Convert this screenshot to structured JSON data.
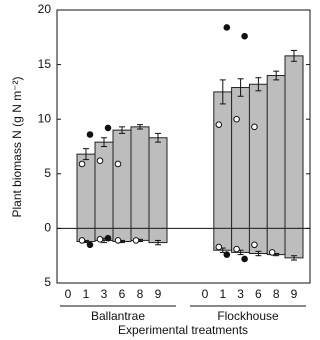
{
  "chart_data": {
    "type": "bar",
    "ylabel": "Plant biomass N (g N m⁻²)",
    "xlabel": "Experimental treatments",
    "ylim": [
      -5,
      20
    ],
    "yticks": [
      20,
      15,
      10,
      5,
      0,
      {
        "value": -5,
        "label": "5"
      }
    ],
    "bar_color": "#bdbdbd",
    "groups": [
      {
        "name": "Ballantrae",
        "categories": [
          "0",
          "1",
          "3",
          "6",
          "8",
          "9"
        ],
        "above": [
          null,
          6.8,
          7.9,
          9.0,
          9.3,
          8.3
        ],
        "above_err": [
          null,
          0.5,
          0.4,
          0.3,
          0.2,
          0.4
        ],
        "below": [
          null,
          -1.2,
          -1.1,
          -1.2,
          -1.1,
          -1.3
        ],
        "below_err": [
          null,
          0.1,
          0.2,
          0.1,
          0.1,
          0.2
        ],
        "open_above": [
          null,
          5.9,
          6.2,
          5.9,
          null,
          null
        ],
        "filled_above": [
          null,
          8.6,
          9.2,
          null,
          null,
          null
        ],
        "open_below": [
          null,
          -1.1,
          -1.0,
          -1.1,
          -1.1,
          null
        ],
        "filled_below": [
          null,
          -1.5,
          -0.9,
          null,
          null,
          null
        ]
      },
      {
        "name": "Flockhouse",
        "categories": [
          "0",
          "1",
          "3",
          "6",
          "8",
          "9"
        ],
        "above": [
          null,
          12.5,
          12.9,
          13.2,
          14.0,
          15.8
        ],
        "above_err": [
          null,
          1.1,
          0.8,
          0.6,
          0.4,
          0.5
        ],
        "below": [
          null,
          -2.0,
          -2.2,
          -2.3,
          -2.4,
          -2.7
        ],
        "below_err": [
          null,
          0.2,
          0.2,
          0.2,
          0.1,
          0.2
        ],
        "open_above": [
          null,
          9.5,
          10.0,
          9.3,
          null,
          null
        ],
        "filled_above": [
          null,
          18.4,
          17.6,
          null,
          null,
          null
        ],
        "open_below": [
          null,
          -1.7,
          -1.9,
          -1.5,
          -2.2,
          null
        ],
        "filled_below": [
          null,
          -2.4,
          -2.8,
          null,
          null,
          null
        ]
      }
    ]
  }
}
